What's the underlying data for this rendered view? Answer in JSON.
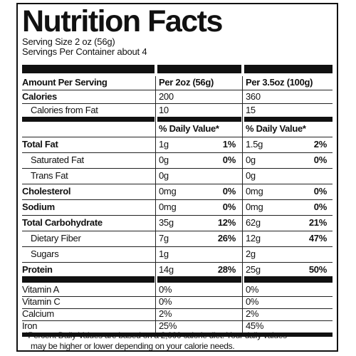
{
  "label": {
    "title": "Nutrition Facts",
    "serving_size": "Serving Size 2 oz (56g)",
    "servings_per_container": "Servings Per Container about 4",
    "header": {
      "amount_per_serving": "Amount Per Serving",
      "col1": "Per 2oz (56g)",
      "col2": "Per 3.5oz (100g)"
    },
    "calories": {
      "name": "Calories",
      "col1": "200",
      "col2": "360"
    },
    "calories_from_fat": {
      "name": "Calories from Fat",
      "col1": "10",
      "col2": "15"
    },
    "daily_value_header": {
      "col1": "% Daily Value*",
      "col2": "% Daily Value*"
    },
    "nutrients": [
      {
        "name": "Total Fat",
        "bold": true,
        "indent": false,
        "amt1": "1g",
        "dv1": "1%",
        "amt2": "1.5g",
        "dv2": "2%"
      },
      {
        "name": "Saturated Fat",
        "bold": false,
        "indent": true,
        "amt1": "0g",
        "dv1": "0%",
        "amt2": "0g",
        "dv2": "0%"
      },
      {
        "name": "Trans Fat",
        "bold": false,
        "indent": true,
        "amt1": "0g",
        "dv1": "",
        "amt2": "0g",
        "dv2": ""
      },
      {
        "name": "Cholesterol",
        "bold": true,
        "indent": false,
        "amt1": "0mg",
        "dv1": "0%",
        "amt2": "0mg",
        "dv2": "0%"
      },
      {
        "name": "Sodium",
        "bold": true,
        "indent": false,
        "amt1": "0mg",
        "dv1": "0%",
        "amt2": "0mg",
        "dv2": "0%"
      },
      {
        "name": "Total Carbohydrate",
        "bold": true,
        "indent": false,
        "amt1": "35g",
        "dv1": "12%",
        "amt2": "62g",
        "dv2": "21%"
      },
      {
        "name": "Dietary Fiber",
        "bold": false,
        "indent": true,
        "amt1": "7g",
        "dv1": "26%",
        "amt2": "12g",
        "dv2": "47%"
      },
      {
        "name": "Sugars",
        "bold": false,
        "indent": true,
        "amt1": "1g",
        "dv1": "",
        "amt2": "2g",
        "dv2": ""
      },
      {
        "name": "Protein",
        "bold": true,
        "indent": false,
        "amt1": "14g",
        "dv1": "28%",
        "amt2": "25g",
        "dv2": "50%"
      }
    ],
    "vitamins": [
      {
        "name": "Vitamin A",
        "col1": "0%",
        "col2": "0%"
      },
      {
        "name": "Vitamin C",
        "col1": "0%",
        "col2": "0%"
      },
      {
        "name": "Calcium",
        "col1": "2%",
        "col2": "2%"
      },
      {
        "name": "Iron",
        "col1": "25%",
        "col2": "45%"
      }
    ],
    "footnote_line1": "*Percent Daily Values are based on a 2,000 calorie diet. Your daily values",
    "footnote_line2": "may be higher or lower depending on your calorie needs."
  }
}
